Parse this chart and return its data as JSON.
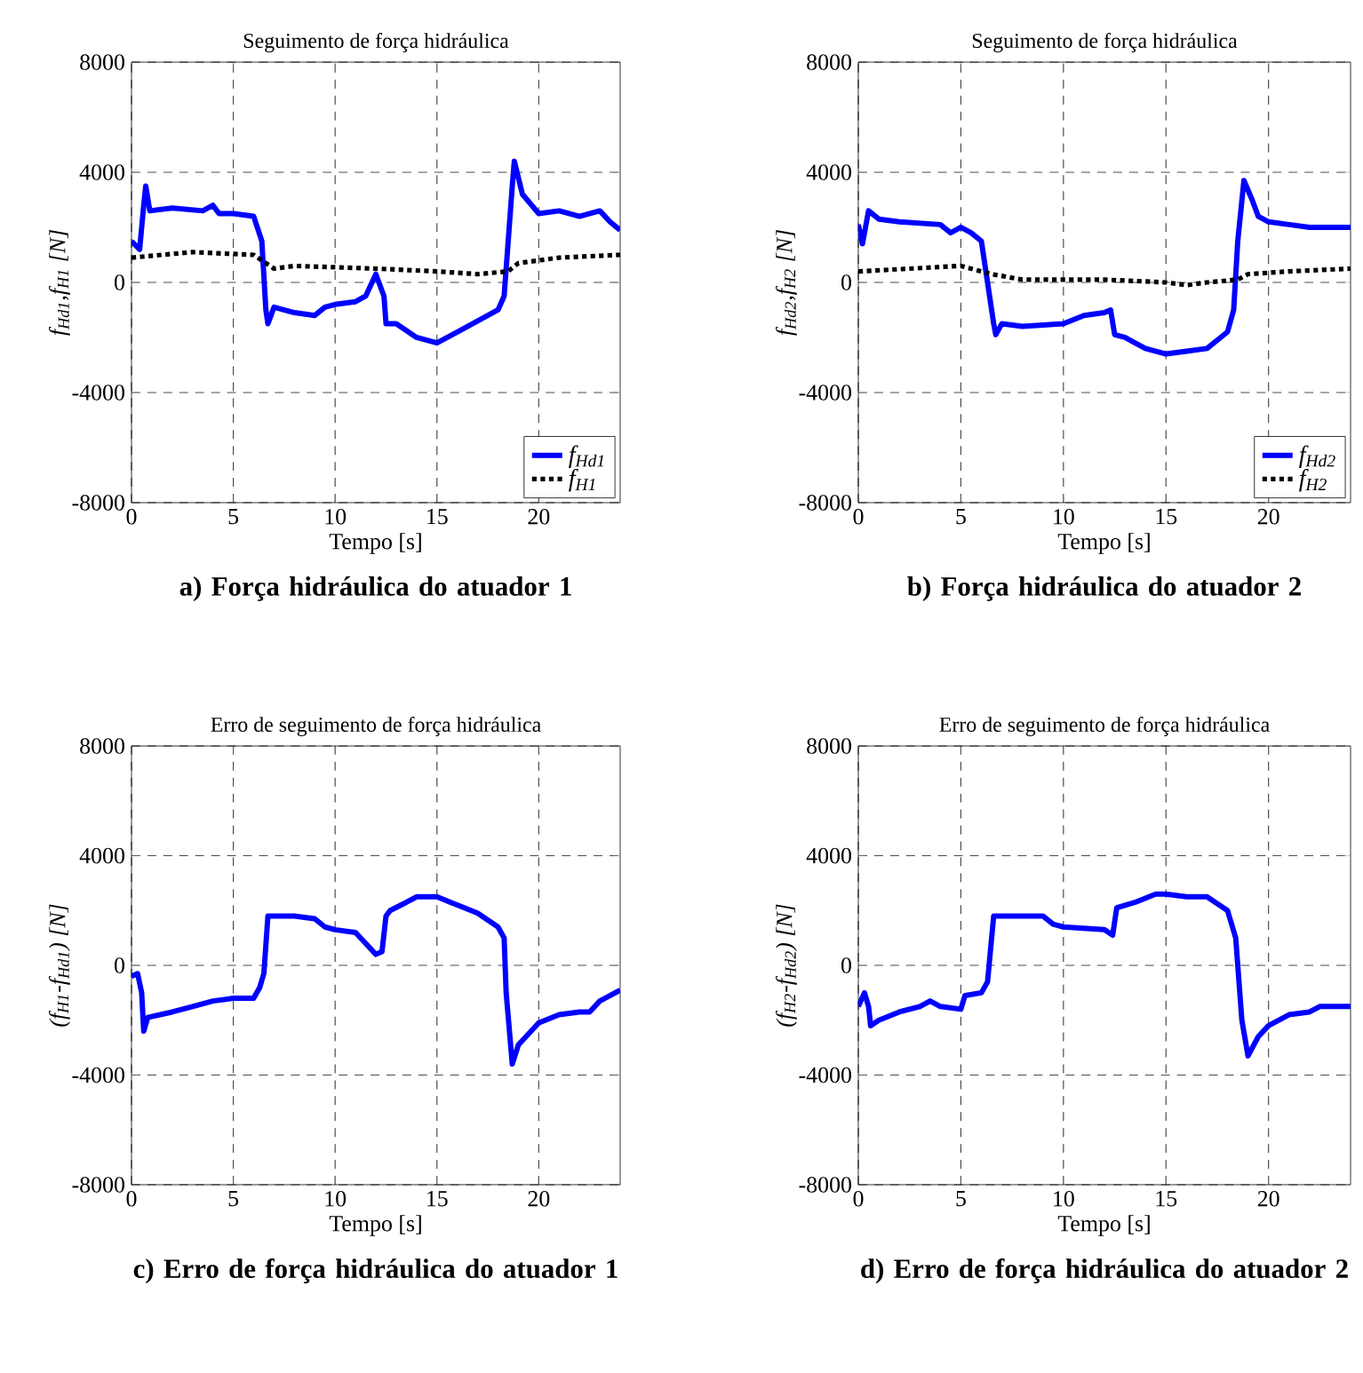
{
  "chart_data": [
    {
      "type": "line",
      "title": "Seguimento de força hidráulica",
      "xlabel": "Tempo [s]",
      "ylabel": "f$_{Hd1}$,f$_{H1}$ [N]",
      "annotations": [
        "a) Força hidráulica do atuador 1"
      ],
      "xlim": [
        0,
        24
      ],
      "xticks": [
        0,
        5,
        10,
        15,
        20
      ],
      "ylim": [
        -8000,
        8000
      ],
      "yticks": [
        -8000,
        -4000,
        0,
        4000,
        8000
      ],
      "grid": true,
      "legend": "bottom right",
      "series": [
        {
          "name": "f$_{Hd1}$",
          "color": "#0000ff",
          "line_style": "solid",
          "x": [
            0,
            0.4,
            0.6,
            0.7,
            0.9,
            2,
            3.5,
            4,
            4.3,
            5,
            6,
            6.4,
            6.6,
            6.7,
            7,
            8,
            9,
            9.5,
            10,
            11,
            11.5,
            12,
            12.4,
            12.5,
            13,
            14,
            15,
            16,
            17,
            18,
            18.3,
            18.5,
            18.7,
            18.8,
            19.2,
            20,
            21,
            22,
            23,
            23.5,
            24
          ],
          "values": [
            1500,
            1200,
            2800,
            3500,
            2600,
            2700,
            2600,
            2800,
            2500,
            2500,
            2400,
            1500,
            -1000,
            -1500,
            -900,
            -1100,
            -1200,
            -900,
            -800,
            -700,
            -500,
            300,
            -500,
            -1500,
            -1500,
            -2000,
            -2200,
            -1800,
            -1400,
            -1000,
            -500,
            1500,
            3500,
            4400,
            3200,
            2500,
            2600,
            2400,
            2600,
            2200,
            1900
          ]
        },
        {
          "name": "f$_{H1}$",
          "color": "#000000",
          "line_style": "dotted",
          "x": [
            0,
            3,
            6,
            7,
            8,
            12,
            15,
            17,
            18.5,
            19,
            21,
            24
          ],
          "values": [
            900,
            1100,
            1000,
            500,
            600,
            500,
            400,
            300,
            400,
            700,
            900,
            1000
          ]
        }
      ]
    },
    {
      "type": "line",
      "title": "Seguimento de força hidráulica",
      "xlabel": "Tempo [s]",
      "ylabel": "f$_{Hd2}$,f$_{H2}$ [N]",
      "annotations": [
        "b) Força hidráulica do atuador 2"
      ],
      "xlim": [
        0,
        24
      ],
      "xticks": [
        0,
        5,
        10,
        15,
        20
      ],
      "ylim": [
        -8000,
        8000
      ],
      "yticks": [
        -8000,
        -4000,
        0,
        4000,
        8000
      ],
      "grid": true,
      "legend": "bottom right",
      "series": [
        {
          "name": "f$_{Hd2}$",
          "color": "#0000ff",
          "line_style": "solid",
          "x": [
            0,
            0.2,
            0.5,
            1,
            2,
            4,
            4.5,
            5,
            5.5,
            6,
            6.3,
            6.6,
            6.7,
            7,
            8,
            10,
            11,
            12,
            12.3,
            12.5,
            13,
            14,
            15,
            16,
            17,
            18,
            18.3,
            18.5,
            18.8,
            19.2,
            19.5,
            20,
            21,
            22,
            24
          ],
          "values": [
            2100,
            1400,
            2600,
            2300,
            2200,
            2100,
            1800,
            2000,
            1800,
            1500,
            0,
            -1500,
            -1900,
            -1500,
            -1600,
            -1500,
            -1200,
            -1100,
            -1000,
            -1900,
            -2000,
            -2400,
            -2600,
            -2500,
            -2400,
            -1800,
            -1000,
            1500,
            3700,
            3000,
            2400,
            2200,
            2100,
            2000,
            2000
          ]
        },
        {
          "name": "f$_{H2}$",
          "color": "#000000",
          "line_style": "dotted",
          "x": [
            0,
            5,
            6.5,
            8,
            12,
            15,
            16,
            17,
            18.5,
            19,
            21,
            24
          ],
          "values": [
            400,
            600,
            300,
            100,
            100,
            0,
            -100,
            0,
            100,
            300,
            400,
            500
          ]
        }
      ]
    },
    {
      "type": "line",
      "title": "Erro de seguimento de força hidráulica",
      "xlabel": "Tempo [s]",
      "ylabel": "(f$_{H1}$-f$_{Hd1}$) [N]",
      "annotations": [
        "c) Erro de força hidráulica do atuador 1"
      ],
      "xlim": [
        0,
        24
      ],
      "xticks": [
        0,
        5,
        10,
        15,
        20
      ],
      "ylim": [
        -8000,
        8000
      ],
      "yticks": [
        -8000,
        -4000,
        0,
        4000,
        8000
      ],
      "grid": true,
      "series": [
        {
          "color": "#0000ff",
          "line_style": "solid",
          "x": [
            0,
            0.3,
            0.5,
            0.6,
            0.8,
            2,
            3,
            4,
            5,
            6,
            6.3,
            6.5,
            6.7,
            7,
            8,
            9,
            9.5,
            10,
            11,
            11.5,
            12,
            12.3,
            12.5,
            12.7,
            13.5,
            14,
            15,
            16,
            17,
            18,
            18.3,
            18.4,
            18.7,
            19,
            20,
            21,
            22,
            22.5,
            23,
            24
          ],
          "values": [
            -400,
            -300,
            -1000,
            -2400,
            -1900,
            -1700,
            -1500,
            -1300,
            -1200,
            -1200,
            -800,
            -300,
            1800,
            1800,
            1800,
            1700,
            1400,
            1300,
            1200,
            800,
            400,
            500,
            1800,
            2000,
            2300,
            2500,
            2500,
            2200,
            1900,
            1400,
            1000,
            -1000,
            -3600,
            -2900,
            -2100,
            -1800,
            -1700,
            -1700,
            -1300,
            -900
          ]
        }
      ]
    },
    {
      "type": "line",
      "title": "Erro de seguimento de força hidráulica",
      "xlabel": "Tempo [s]",
      "ylabel": "(f$_{H2}$-f$_{Hd2}$) [N]",
      "annotations": [
        "d) Erro de força hidráulica do atuador 2"
      ],
      "xlim": [
        0,
        24
      ],
      "xticks": [
        0,
        5,
        10,
        15,
        20
      ],
      "ylim": [
        -8000,
        8000
      ],
      "yticks": [
        -8000,
        -4000,
        0,
        4000,
        8000
      ],
      "grid": true,
      "series": [
        {
          "color": "#0000ff",
          "line_style": "solid",
          "x": [
            0,
            0.3,
            0.5,
            0.6,
            1,
            2,
            3,
            3.5,
            4,
            5,
            5.2,
            6,
            6.3,
            6.6,
            8,
            9,
            9.5,
            10,
            12,
            12.4,
            12.6,
            13.5,
            14.5,
            15,
            16,
            17,
            18,
            18.4,
            18.7,
            19,
            19.5,
            20,
            21,
            22,
            22.5,
            24
          ],
          "values": [
            -1500,
            -1000,
            -1500,
            -2200,
            -2000,
            -1700,
            -1500,
            -1300,
            -1500,
            -1600,
            -1100,
            -1000,
            -600,
            1800,
            1800,
            1800,
            1500,
            1400,
            1300,
            1100,
            2100,
            2300,
            2600,
            2600,
            2500,
            2500,
            2000,
            1000,
            -2000,
            -3300,
            -2600,
            -2200,
            -1800,
            -1700,
            -1500,
            -1500
          ]
        }
      ]
    }
  ]
}
